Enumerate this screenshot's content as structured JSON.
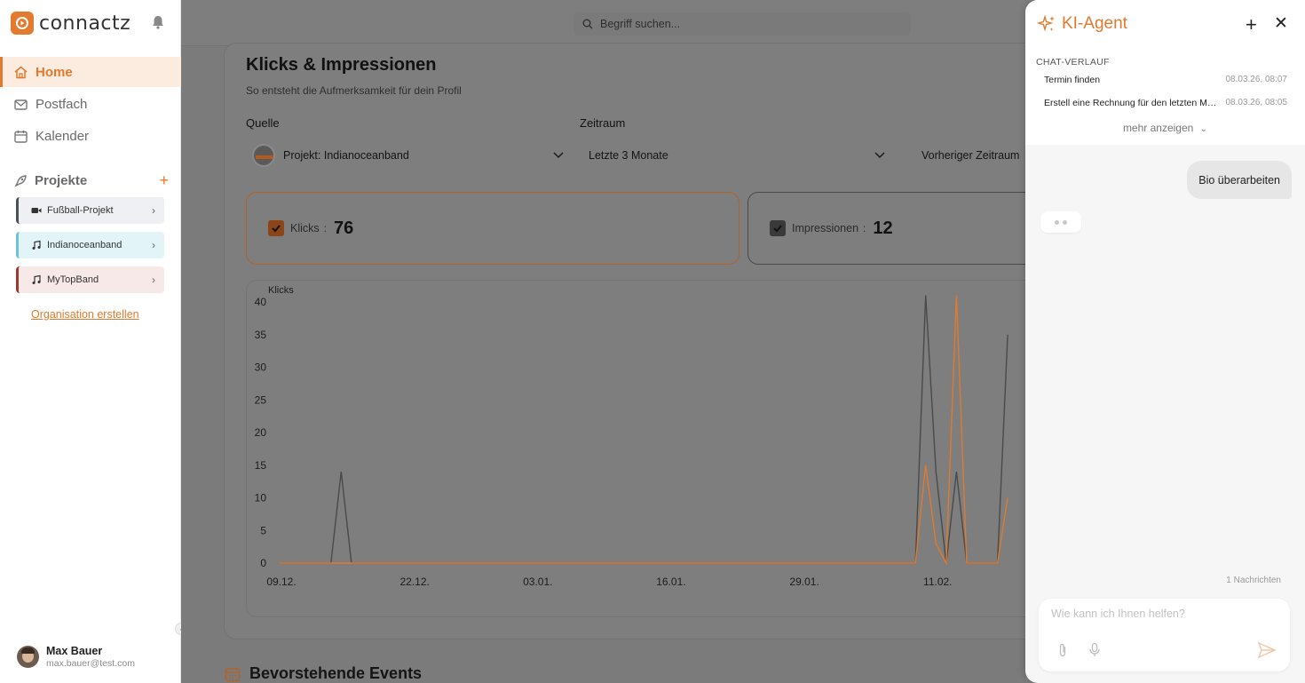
{
  "app": {
    "logo_text": "connactz",
    "brand_color": "#e07a2e"
  },
  "sidebar": {
    "nav": [
      {
        "label": "Home",
        "icon": "home-icon",
        "active": true
      },
      {
        "label": "Postfach",
        "icon": "mail-icon"
      },
      {
        "label": "Kalender",
        "icon": "calendar-icon"
      }
    ],
    "projects_label": "Projekte",
    "projects": [
      {
        "label": "Fußball-Projekt",
        "icon": "video-icon"
      },
      {
        "label": "Indianoceanband",
        "icon": "music-icon"
      },
      {
        "label": "MyTopBand",
        "icon": "music-icon"
      }
    ],
    "org_link": "Organisation erstellen",
    "user": {
      "name": "Max Bauer",
      "email": "max.bauer@test.com"
    }
  },
  "topbar": {
    "search_placeholder": "Begriff suchen..."
  },
  "main": {
    "title": "Klicks & Impressionen",
    "subtitle": "So entsteht die Aufmerksamkeit für dein Profil",
    "source_label": "Quelle",
    "source_value": "Projekt: Indianoceanband",
    "period_label": "Zeitraum",
    "period_value": "Letzte 3 Monate",
    "compare_value": "Vorheriger Zeitraum",
    "metrics": [
      {
        "label": "Klicks",
        "value": "76",
        "color": "#e07a2e"
      },
      {
        "label": "Impressionen",
        "value": "12",
        "color": "#4a4a4a"
      }
    ],
    "events_title": "Bevorstehende Events"
  },
  "chart_data": {
    "type": "line",
    "ylabel": "Klicks",
    "ylim": [
      0,
      40
    ],
    "yticks": [
      0,
      5,
      10,
      15,
      20,
      25,
      30,
      35,
      40
    ],
    "xtick_labels": [
      "09.12.",
      "22.12.",
      "03.01.",
      "16.01.",
      "29.01.",
      "11.02."
    ],
    "xtick_index": [
      0,
      13,
      25,
      38,
      51,
      64
    ],
    "series": [
      {
        "color": "#4a4a4a",
        "points": [
          [
            0,
            0
          ],
          [
            5,
            0
          ],
          [
            6,
            14
          ],
          [
            7,
            0
          ],
          [
            62,
            0
          ],
          [
            63,
            41
          ],
          [
            64,
            14
          ],
          [
            65,
            0
          ],
          [
            66,
            14
          ],
          [
            67,
            0
          ],
          [
            70,
            0
          ],
          [
            71,
            35
          ]
        ]
      },
      {
        "color": "#e07a2e",
        "points": [
          [
            0,
            0
          ],
          [
            6,
            0
          ],
          [
            7,
            0
          ],
          [
            62,
            0
          ],
          [
            63,
            15
          ],
          [
            64,
            3
          ],
          [
            65,
            0
          ],
          [
            66,
            41
          ],
          [
            67,
            0
          ],
          [
            70,
            0
          ],
          [
            71,
            10
          ]
        ]
      }
    ]
  },
  "agent": {
    "title": "KI-Agent",
    "history_label": "CHAT-VERLAUF",
    "history": [
      {
        "title": "Termin finden",
        "date": "08.03.26, 08:07"
      },
      {
        "title": "Erstell eine Rechnung für den letzten Monat",
        "date": "08.03.26, 08:05"
      }
    ],
    "more_label": "mehr anzeigen",
    "user_message": "Bio überarbeiten",
    "message_count": "1 Nachrichten",
    "input_placeholder": "Wie kann ich Ihnen helfen?"
  }
}
